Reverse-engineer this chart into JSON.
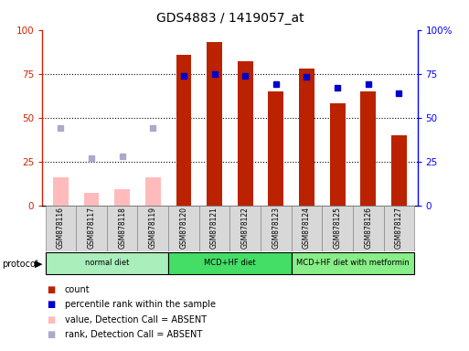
{
  "title": "GDS4883 / 1419057_at",
  "samples": [
    "GSM878116",
    "GSM878117",
    "GSM878118",
    "GSM878119",
    "GSM878120",
    "GSM878121",
    "GSM878122",
    "GSM878123",
    "GSM878124",
    "GSM878125",
    "GSM878126",
    "GSM878127"
  ],
  "bar_values": [
    16,
    7,
    9,
    16,
    86,
    93,
    82,
    65,
    78,
    58,
    65,
    40
  ],
  "bar_absent": [
    true,
    true,
    true,
    true,
    false,
    false,
    false,
    false,
    false,
    false,
    false,
    false
  ],
  "rank_values": [
    44,
    27,
    28,
    44,
    74,
    75,
    74,
    69,
    73,
    67,
    69,
    64
  ],
  "rank_absent": [
    true,
    true,
    true,
    true,
    false,
    false,
    false,
    false,
    false,
    false,
    false,
    false
  ],
  "protocols": [
    {
      "label": "normal diet",
      "start": 0,
      "end": 4,
      "color": "#aaeebb"
    },
    {
      "label": "MCD+HF diet",
      "start": 4,
      "end": 8,
      "color": "#44dd66"
    },
    {
      "label": "MCD+HF diet with metformin",
      "start": 8,
      "end": 12,
      "color": "#88ee88"
    }
  ],
  "ylim": [
    0,
    100
  ],
  "yticks": [
    0,
    25,
    50,
    75,
    100
  ],
  "absent_bar_color": "#ffbbbb",
  "absent_rank_color": "#aaaacc",
  "present_rank_color": "#0000cc",
  "present_bar_color": "#bb2200",
  "legend_items": [
    {
      "label": "count",
      "color": "#bb2200"
    },
    {
      "label": "percentile rank within the sample",
      "color": "#0000cc"
    },
    {
      "label": "value, Detection Call = ABSENT",
      "color": "#ffbbbb"
    },
    {
      "label": "rank, Detection Call = ABSENT",
      "color": "#aaaacc"
    }
  ]
}
